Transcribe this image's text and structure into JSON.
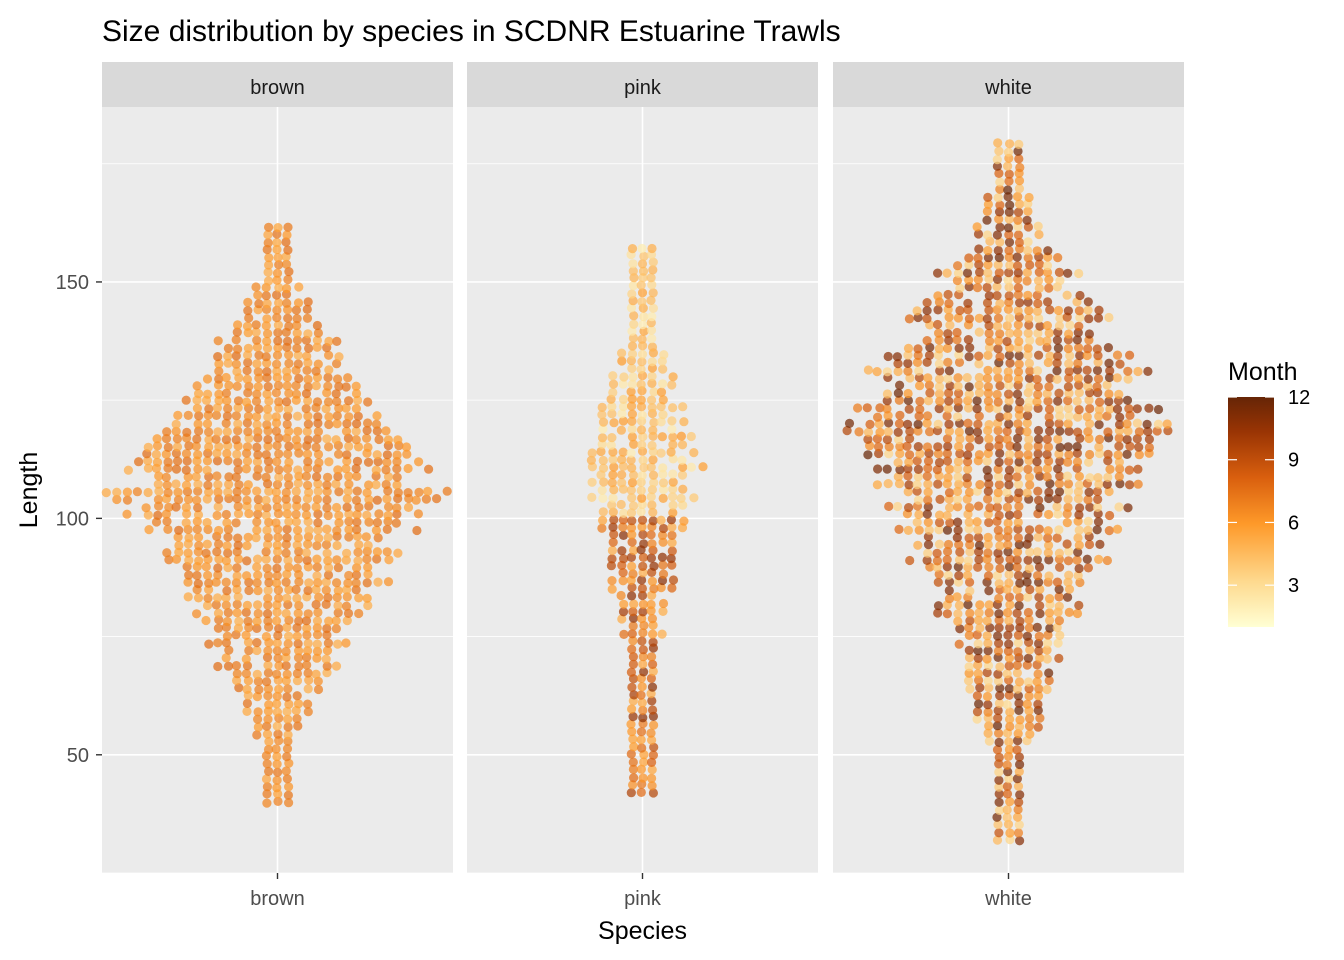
{
  "chart_data": {
    "type": "scatter",
    "title": "Size distribution by species in SCDNR Estuarine Trawls",
    "xlabel": "Species",
    "ylabel": "Length",
    "ylim": [
      25,
      187
    ],
    "yticks": [
      50,
      100,
      150
    ],
    "grid": true,
    "panels": [
      {
        "strip": "brown",
        "tick": "brown",
        "length_range": [
          40,
          162
        ],
        "mode_length": 106,
        "month_range": [
          5,
          8
        ]
      },
      {
        "strip": "pink",
        "tick": "pink",
        "length_range": [
          42,
          158
        ],
        "mode_length": 112,
        "month_range": [
          2,
          11
        ]
      },
      {
        "strip": "white",
        "tick": "white",
        "length_range": [
          32,
          180
        ],
        "mode_length": 122,
        "month_range": [
          3,
          12
        ]
      }
    ],
    "color_scale": {
      "title": "Month",
      "min": 1,
      "max": 12,
      "breaks": [
        3,
        6,
        9,
        12
      ],
      "palette": [
        "#FFFFD4",
        "#FED98E",
        "#FE9929",
        "#D95F0E",
        "#993404",
        "#662506"
      ]
    }
  }
}
